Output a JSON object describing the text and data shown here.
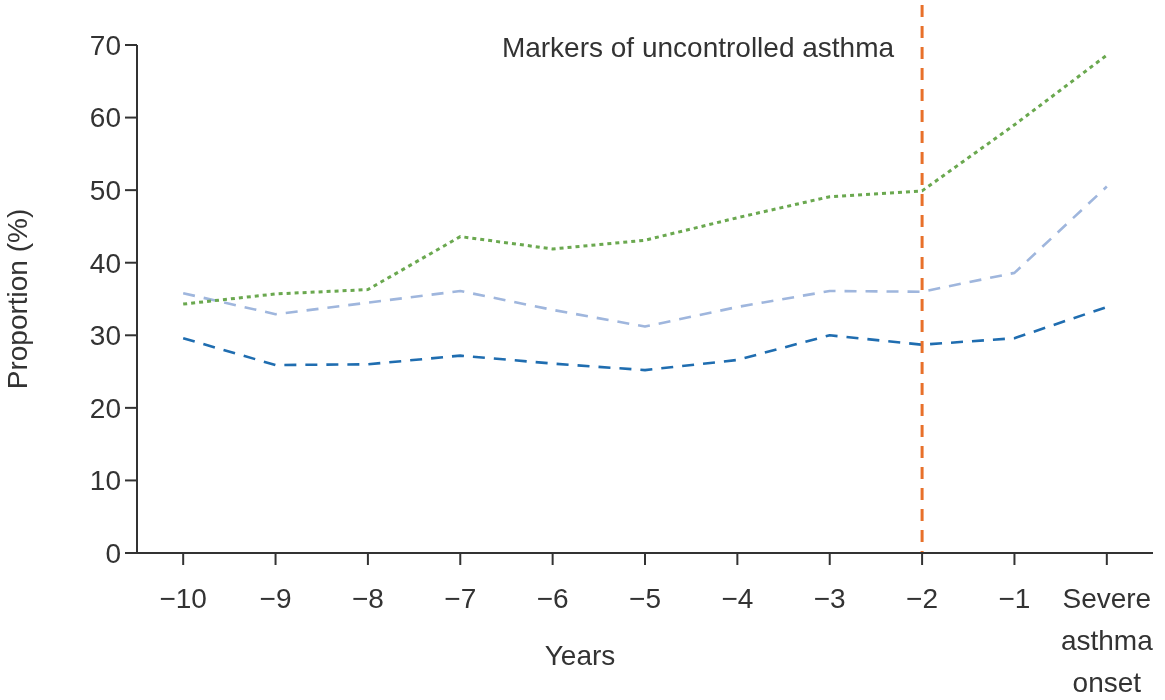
{
  "chart_data": {
    "type": "line",
    "xlabel": "Years",
    "ylabel": "Proportion (%)",
    "categories": [
      "−10",
      "−9",
      "−8",
      "−7",
      "−6",
      "−5",
      "−4",
      "−3",
      "−2",
      "−1",
      "Severe asthma onset"
    ],
    "series": [
      {
        "color": "#1f6db0",
        "line_style": "dashed",
        "values": [
          29.6,
          25.9,
          26.0,
          27.2,
          26.1,
          25.2,
          26.6,
          30.0,
          28.7,
          29.6,
          33.9
        ]
      },
      {
        "color": "#9fb6dd",
        "line_style": "dashed",
        "values": [
          35.8,
          32.9,
          34.5,
          36.1,
          33.5,
          31.2,
          33.9,
          36.1,
          36.0,
          38.6,
          50.5
        ]
      },
      {
        "color": "#6aa84f",
        "line_style": "dotted",
        "values": [
          34.3,
          35.7,
          36.3,
          43.6,
          41.9,
          43.1,
          46.2,
          49.1,
          49.9,
          59.0,
          68.6
        ]
      }
    ],
    "ylim": [
      0,
      70
    ],
    "yticks": [
      0,
      10,
      20,
      30,
      40,
      50,
      60,
      70
    ],
    "ref_lines": [
      {
        "axis": "x",
        "value": "−2",
        "label": "Markers of uncontrolled asthma",
        "color": "#e8702a",
        "line_style": "dashed"
      }
    ]
  }
}
